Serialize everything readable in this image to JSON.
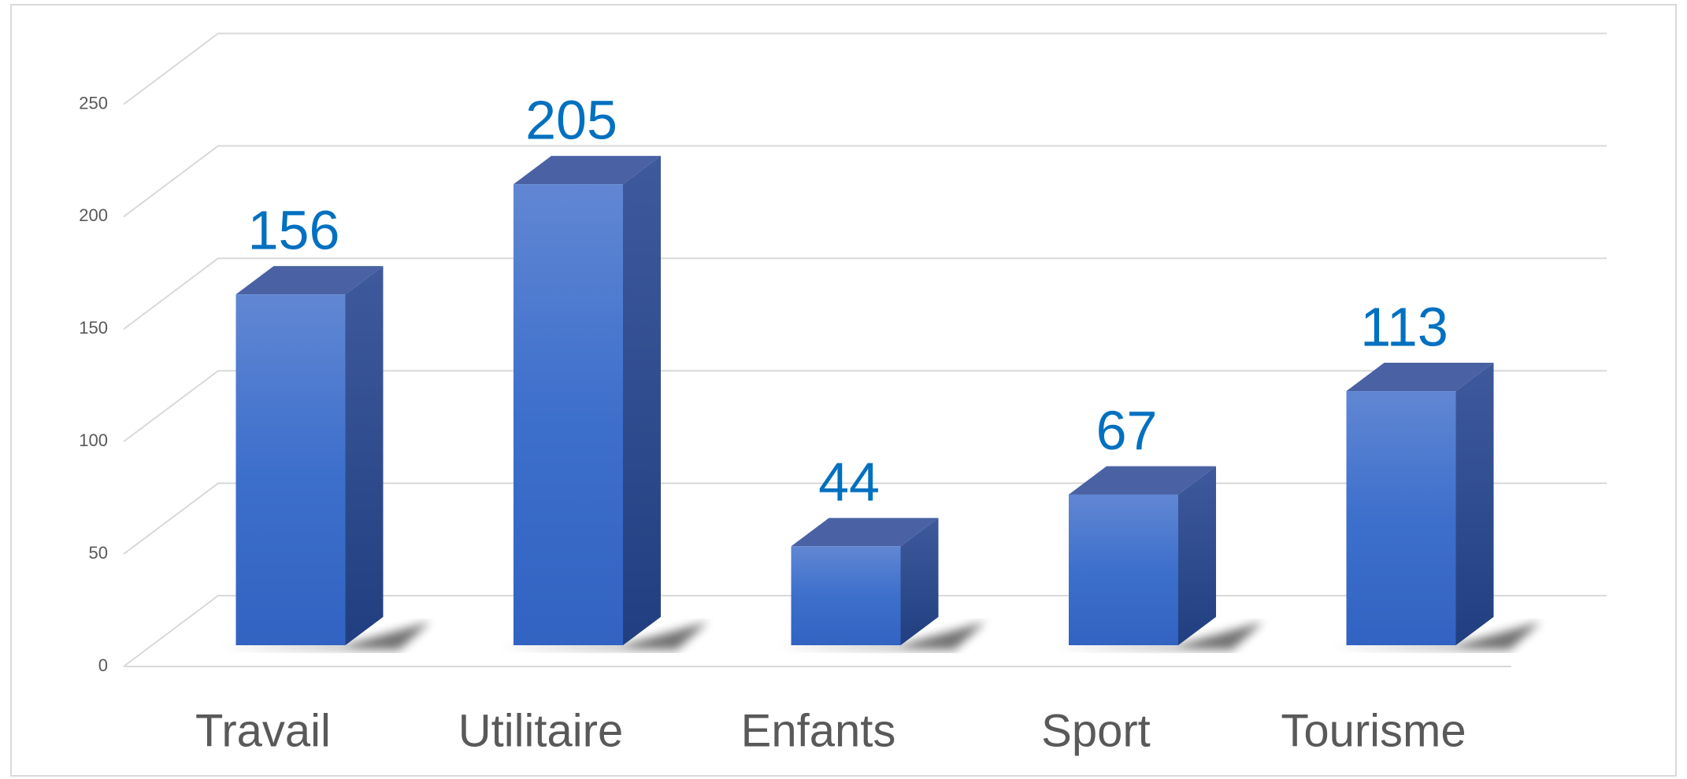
{
  "chart_data": {
    "type": "bar3d",
    "categories": [
      "Travail",
      "Utilitaire",
      "Enfants",
      "Sport",
      "Tourisme"
    ],
    "values": [
      156,
      205,
      44,
      67,
      113
    ],
    "color": "#3d6fcc",
    "value_label_color": "#0070c0",
    "ylim": [
      0,
      250
    ],
    "yticks": [
      0,
      50,
      100,
      150,
      200,
      250
    ],
    "grid": true
  }
}
